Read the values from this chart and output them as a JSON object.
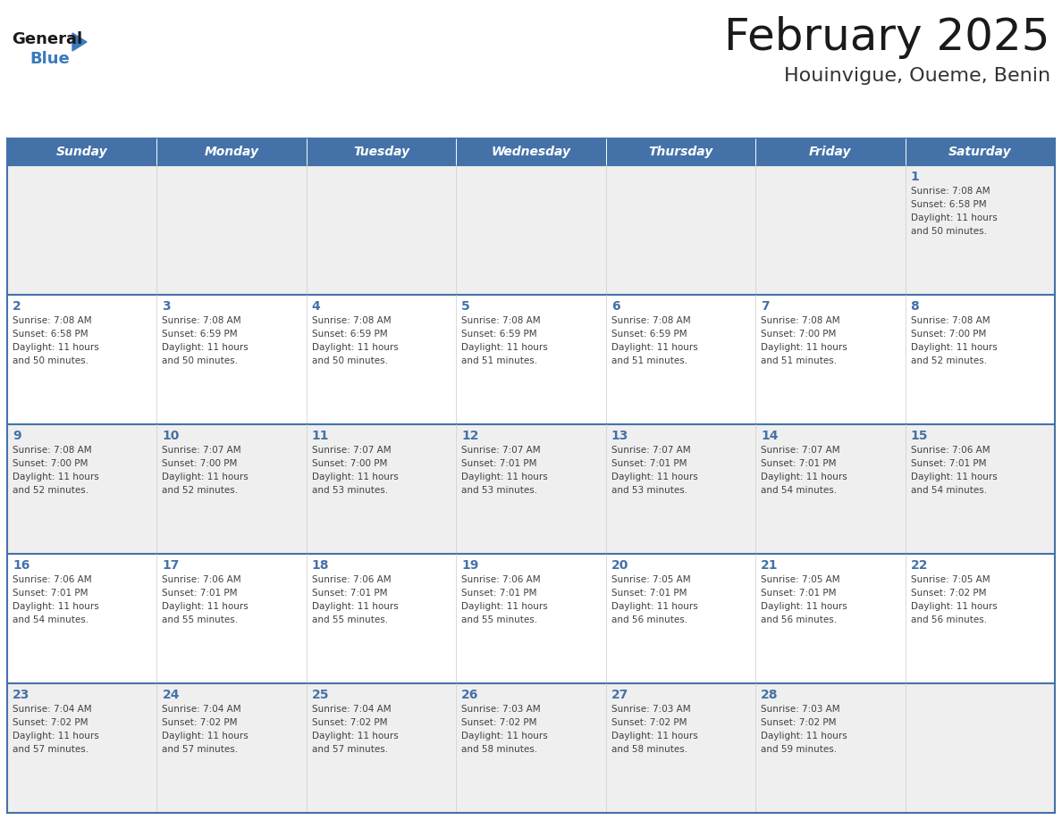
{
  "title": "February 2025",
  "subtitle": "Houinvigue, Oueme, Benin",
  "header_bg": "#4472a8",
  "header_text_color": "#ffffff",
  "day_names": [
    "Sunday",
    "Monday",
    "Tuesday",
    "Wednesday",
    "Thursday",
    "Friday",
    "Saturday"
  ],
  "cell_bg_even": "#efefef",
  "cell_bg_odd": "#ffffff",
  "cell_border_color": "#4472a8",
  "text_color": "#404040",
  "day_number_color": "#4472a8",
  "title_color": "#1a1a1a",
  "subtitle_color": "#333333",
  "logo_general_color": "#1a1a1a",
  "logo_blue_color": "#3a7abf",
  "calendar_data": [
    [
      null,
      null,
      null,
      null,
      null,
      null,
      {
        "day": 1,
        "sunrise": "7:08 AM",
        "sunset": "6:58 PM",
        "daylight": "11 hours and 50 minutes."
      }
    ],
    [
      {
        "day": 2,
        "sunrise": "7:08 AM",
        "sunset": "6:58 PM",
        "daylight": "11 hours and 50 minutes."
      },
      {
        "day": 3,
        "sunrise": "7:08 AM",
        "sunset": "6:59 PM",
        "daylight": "11 hours and 50 minutes."
      },
      {
        "day": 4,
        "sunrise": "7:08 AM",
        "sunset": "6:59 PM",
        "daylight": "11 hours and 50 minutes."
      },
      {
        "day": 5,
        "sunrise": "7:08 AM",
        "sunset": "6:59 PM",
        "daylight": "11 hours and 51 minutes."
      },
      {
        "day": 6,
        "sunrise": "7:08 AM",
        "sunset": "6:59 PM",
        "daylight": "11 hours and 51 minutes."
      },
      {
        "day": 7,
        "sunrise": "7:08 AM",
        "sunset": "7:00 PM",
        "daylight": "11 hours and 51 minutes."
      },
      {
        "day": 8,
        "sunrise": "7:08 AM",
        "sunset": "7:00 PM",
        "daylight": "11 hours and 52 minutes."
      }
    ],
    [
      {
        "day": 9,
        "sunrise": "7:08 AM",
        "sunset": "7:00 PM",
        "daylight": "11 hours and 52 minutes."
      },
      {
        "day": 10,
        "sunrise": "7:07 AM",
        "sunset": "7:00 PM",
        "daylight": "11 hours and 52 minutes."
      },
      {
        "day": 11,
        "sunrise": "7:07 AM",
        "sunset": "7:00 PM",
        "daylight": "11 hours and 53 minutes."
      },
      {
        "day": 12,
        "sunrise": "7:07 AM",
        "sunset": "7:01 PM",
        "daylight": "11 hours and 53 minutes."
      },
      {
        "day": 13,
        "sunrise": "7:07 AM",
        "sunset": "7:01 PM",
        "daylight": "11 hours and 53 minutes."
      },
      {
        "day": 14,
        "sunrise": "7:07 AM",
        "sunset": "7:01 PM",
        "daylight": "11 hours and 54 minutes."
      },
      {
        "day": 15,
        "sunrise": "7:06 AM",
        "sunset": "7:01 PM",
        "daylight": "11 hours and 54 minutes."
      }
    ],
    [
      {
        "day": 16,
        "sunrise": "7:06 AM",
        "sunset": "7:01 PM",
        "daylight": "11 hours and 54 minutes."
      },
      {
        "day": 17,
        "sunrise": "7:06 AM",
        "sunset": "7:01 PM",
        "daylight": "11 hours and 55 minutes."
      },
      {
        "day": 18,
        "sunrise": "7:06 AM",
        "sunset": "7:01 PM",
        "daylight": "11 hours and 55 minutes."
      },
      {
        "day": 19,
        "sunrise": "7:06 AM",
        "sunset": "7:01 PM",
        "daylight": "11 hours and 55 minutes."
      },
      {
        "day": 20,
        "sunrise": "7:05 AM",
        "sunset": "7:01 PM",
        "daylight": "11 hours and 56 minutes."
      },
      {
        "day": 21,
        "sunrise": "7:05 AM",
        "sunset": "7:01 PM",
        "daylight": "11 hours and 56 minutes."
      },
      {
        "day": 22,
        "sunrise": "7:05 AM",
        "sunset": "7:02 PM",
        "daylight": "11 hours and 56 minutes."
      }
    ],
    [
      {
        "day": 23,
        "sunrise": "7:04 AM",
        "sunset": "7:02 PM",
        "daylight": "11 hours and 57 minutes."
      },
      {
        "day": 24,
        "sunrise": "7:04 AM",
        "sunset": "7:02 PM",
        "daylight": "11 hours and 57 minutes."
      },
      {
        "day": 25,
        "sunrise": "7:04 AM",
        "sunset": "7:02 PM",
        "daylight": "11 hours and 57 minutes."
      },
      {
        "day": 26,
        "sunrise": "7:03 AM",
        "sunset": "7:02 PM",
        "daylight": "11 hours and 58 minutes."
      },
      {
        "day": 27,
        "sunrise": "7:03 AM",
        "sunset": "7:02 PM",
        "daylight": "11 hours and 58 minutes."
      },
      {
        "day": 28,
        "sunrise": "7:03 AM",
        "sunset": "7:02 PM",
        "daylight": "11 hours and 59 minutes."
      },
      null
    ]
  ],
  "fig_width": 11.88,
  "fig_height": 9.18,
  "dpi": 100
}
